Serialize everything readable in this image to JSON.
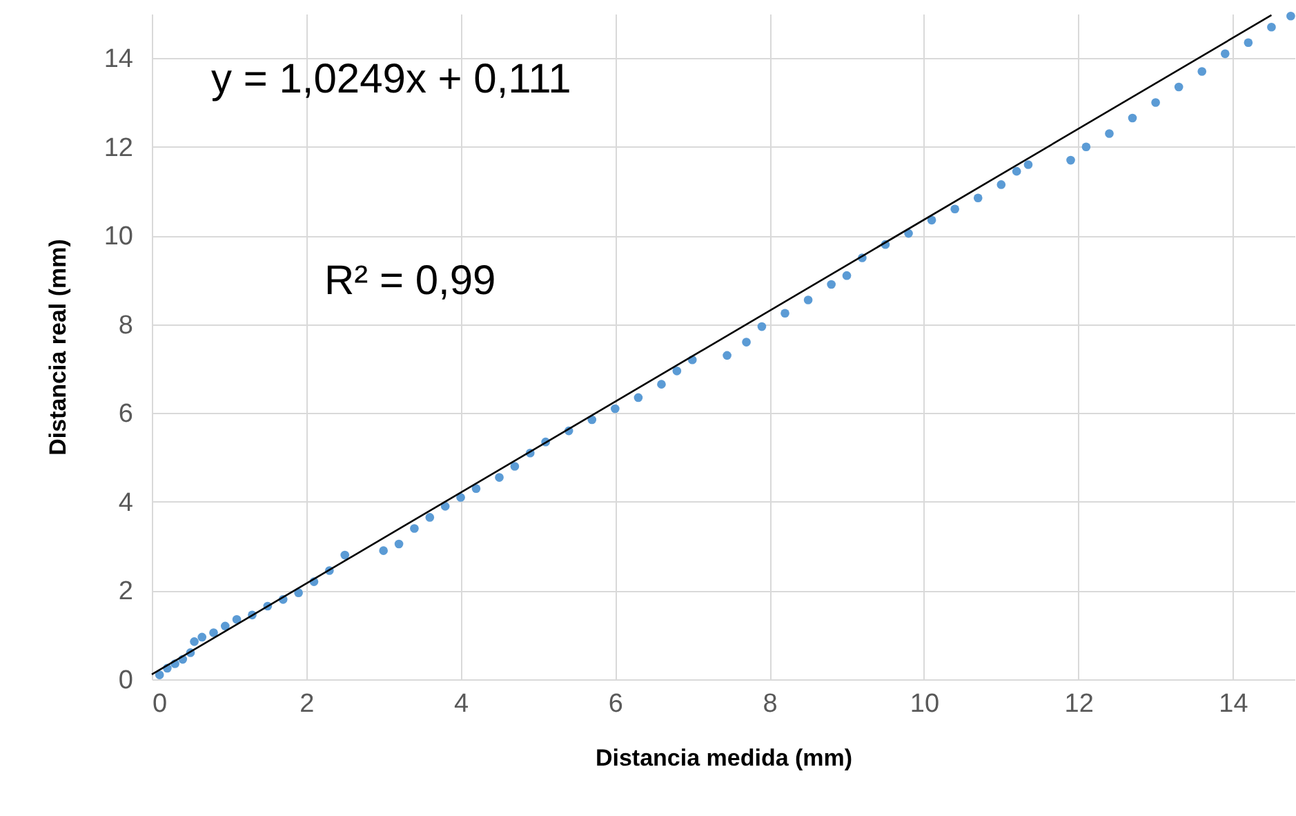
{
  "chart_data": {
    "type": "scatter",
    "xlabel": "Distancia medida (mm)",
    "ylabel": "Distancia real (mm)",
    "annotations": [
      "y = 1,0249x + 0,111",
      "R² = 0,99"
    ],
    "xlim": [
      0,
      14.8
    ],
    "ylim": [
      0,
      15
    ],
    "xticks": [
      0,
      2,
      4,
      6,
      8,
      10,
      12,
      14
    ],
    "yticks": [
      0,
      2,
      4,
      6,
      8,
      10,
      12,
      14
    ],
    "grid": true,
    "series": [
      {
        "marker": "circle",
        "color": "#5b9bd5",
        "x": [
          0.1,
          0.2,
          0.3,
          0.4,
          0.5,
          0.55,
          0.65,
          0.8,
          0.95,
          1.1,
          1.3,
          1.5,
          1.7,
          1.9,
          2.1,
          2.3,
          2.5,
          3.0,
          3.2,
          3.4,
          3.6,
          3.8,
          4.0,
          4.2,
          4.5,
          4.7,
          4.9,
          5.1,
          5.4,
          5.7,
          6.0,
          6.3,
          6.6,
          6.8,
          7.0,
          7.45,
          7.7,
          7.9,
          8.2,
          8.5,
          8.8,
          9.0,
          9.2,
          9.5,
          9.8,
          10.1,
          10.4,
          10.7,
          11.0,
          11.2,
          11.35,
          11.9,
          12.1,
          12.4,
          12.7,
          13.0,
          13.3,
          13.6,
          13.9,
          14.2,
          14.5,
          14.75
        ],
        "values": [
          0.1,
          0.25,
          0.35,
          0.45,
          0.6,
          0.85,
          0.95,
          1.05,
          1.2,
          1.35,
          1.45,
          1.65,
          1.8,
          1.95,
          2.2,
          2.45,
          2.8,
          2.9,
          3.05,
          3.4,
          3.65,
          3.9,
          4.1,
          4.3,
          4.55,
          4.8,
          5.1,
          5.35,
          5.6,
          5.85,
          6.1,
          6.35,
          6.65,
          6.95,
          7.2,
          7.3,
          7.6,
          7.95,
          8.25,
          8.55,
          8.9,
          9.1,
          9.5,
          9.8,
          10.05,
          10.35,
          10.6,
          10.85,
          11.15,
          11.45,
          11.6,
          11.7,
          12.0,
          12.3,
          12.65,
          13.0,
          13.35,
          13.7,
          14.1,
          14.35,
          14.7,
          14.95
        ]
      },
      {
        "type": "line",
        "color": "#000000",
        "line_style": "solid",
        "x": [
          0,
          14.5
        ],
        "values": [
          0.11,
          14.97
        ]
      }
    ]
  }
}
